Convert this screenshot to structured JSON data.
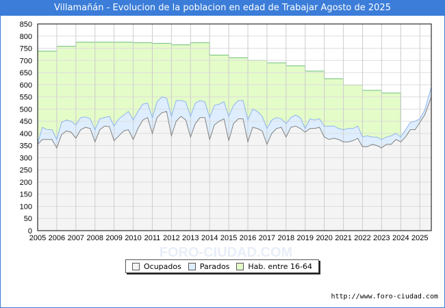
{
  "chart_data": {
    "type": "area",
    "title": "Villamañán - Evolucion de la poblacion en edad de Trabajar Agosto de 2025",
    "xlabel": "",
    "ylabel": "",
    "ylim": [
      0,
      850
    ],
    "xlim": [
      2005,
      2025.6
    ],
    "yticks": [
      0,
      50,
      100,
      150,
      200,
      250,
      300,
      350,
      400,
      450,
      500,
      550,
      600,
      650,
      700,
      750,
      800,
      850
    ],
    "xticks": [
      2005,
      2006,
      2007,
      2008,
      2009,
      2010,
      2011,
      2012,
      2013,
      2014,
      2015,
      2016,
      2017,
      2018,
      2019,
      2020,
      2021,
      2022,
      2023,
      2024,
      2025
    ],
    "grid": true,
    "legend_position": "bottom",
    "x": [
      2005.0,
      2005.25,
      2005.5,
      2005.75,
      2006.0,
      2006.25,
      2006.5,
      2006.75,
      2007.0,
      2007.25,
      2007.5,
      2007.75,
      2008.0,
      2008.25,
      2008.5,
      2008.75,
      2009.0,
      2009.25,
      2009.5,
      2009.75,
      2010.0,
      2010.25,
      2010.5,
      2010.75,
      2011.0,
      2011.25,
      2011.5,
      2011.75,
      2012.0,
      2012.25,
      2012.5,
      2012.75,
      2013.0,
      2013.25,
      2013.5,
      2013.75,
      2014.0,
      2014.25,
      2014.5,
      2014.75,
      2015.0,
      2015.25,
      2015.5,
      2015.75,
      2016.0,
      2016.25,
      2016.5,
      2016.75,
      2017.0,
      2017.25,
      2017.5,
      2017.75,
      2018.0,
      2018.25,
      2018.5,
      2018.75,
      2019.0,
      2019.25,
      2019.5,
      2019.75,
      2020.0,
      2020.25,
      2020.5,
      2020.75,
      2021.0,
      2021.25,
      2021.5,
      2021.75,
      2022.0,
      2022.25,
      2022.5,
      2022.75,
      2023.0,
      2023.25,
      2023.5,
      2023.75,
      2024.0,
      2024.25,
      2024.5,
      2024.75,
      2025.0,
      2025.25,
      2025.58
    ],
    "series": [
      {
        "name": "Ocupados",
        "color": "#808080",
        "fill": "#f4f4f4",
        "values": [
          355,
          375,
          375,
          375,
          340,
          395,
          410,
          405,
          380,
          415,
          425,
          420,
          365,
          415,
          430,
          428,
          370,
          390,
          410,
          415,
          375,
          420,
          455,
          465,
          400,
          465,
          485,
          490,
          390,
          450,
          470,
          455,
          385,
          440,
          465,
          465,
          375,
          435,
          450,
          460,
          370,
          440,
          460,
          460,
          365,
          425,
          420,
          410,
          355,
          400,
          420,
          425,
          385,
          425,
          430,
          420,
          405,
          420,
          420,
          425,
          385,
          375,
          380,
          375,
          365,
          365,
          370,
          380,
          345,
          345,
          355,
          350,
          340,
          355,
          355,
          375,
          365,
          385,
          415,
          415,
          445,
          475,
          545
        ]
      },
      {
        "name": "Parados",
        "color": "#8fb4ec",
        "fill": "#deeeff",
        "values": [
          5,
          50,
          40,
          40,
          35,
          50,
          45,
          45,
          55,
          50,
          43,
          40,
          50,
          45,
          35,
          42,
          60,
          70,
          65,
          75,
          80,
          70,
          65,
          60,
          65,
          65,
          65,
          55,
          80,
          85,
          65,
          75,
          85,
          85,
          70,
          65,
          90,
          80,
          70,
          70,
          100,
          75,
          75,
          75,
          90,
          75,
          70,
          60,
          65,
          55,
          45,
          35,
          55,
          40,
          45,
          45,
          15,
          40,
          35,
          35,
          45,
          55,
          50,
          45,
          50,
          55,
          50,
          50,
          40,
          45,
          30,
          35,
          35,
          30,
          35,
          25,
          20,
          30,
          30,
          35,
          15,
          20,
          40
        ]
      },
      {
        "name": "Hab. entre 16-64",
        "color": "#6cbf7c",
        "fill": "#e4fcc8",
        "values": [
          738,
          738,
          738,
          738,
          758,
          758,
          758,
          758,
          775,
          775,
          775,
          775,
          775,
          775,
          775,
          775,
          775,
          775,
          775,
          775,
          773,
          773,
          773,
          773,
          770,
          770,
          770,
          770,
          764,
          764,
          764,
          764,
          773,
          773,
          773,
          773,
          722,
          722,
          722,
          722,
          711,
          711,
          711,
          711,
          700,
          700,
          700,
          700,
          690,
          690,
          690,
          690,
          678,
          678,
          678,
          678,
          656,
          656,
          656,
          656,
          625,
          625,
          625,
          625,
          599,
          599,
          599,
          599,
          577,
          577,
          577,
          577,
          566,
          566,
          566,
          566,
          null,
          null,
          null,
          null,
          null,
          null,
          null
        ]
      }
    ]
  },
  "legend": {
    "ocupados": "Ocupados",
    "parados": "Parados",
    "hab": "Hab. entre 16-64"
  },
  "footer": {
    "url": "http://www.foro-ciudad.com"
  },
  "watermark": "FORO-CIUDAD.COM"
}
